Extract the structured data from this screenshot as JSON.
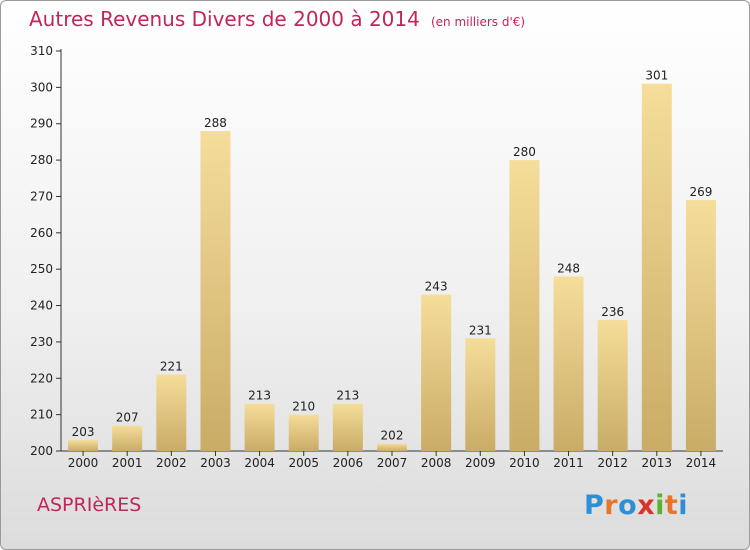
{
  "chart_data": {
    "type": "bar",
    "title": "Autres Revenus Divers de 2000 à 2014",
    "subtitle": "(en milliers d'€)",
    "categories": [
      "2000",
      "2001",
      "2002",
      "2003",
      "2004",
      "2005",
      "2006",
      "2007",
      "2008",
      "2009",
      "2010",
      "2011",
      "2012",
      "2013",
      "2014"
    ],
    "values": [
      203,
      207,
      221,
      288,
      213,
      210,
      213,
      202,
      243,
      231,
      280,
      248,
      236,
      301,
      269
    ],
    "ylim": [
      200,
      310
    ],
    "yticks": [
      200,
      210,
      220,
      230,
      240,
      250,
      260,
      270,
      280,
      290,
      300,
      310
    ],
    "xlabel": "",
    "ylabel": "",
    "grid": false,
    "bar_color": "#e9cf86",
    "title_color": "#c2255c"
  },
  "footer": {
    "commune": "ASPRIèRES"
  },
  "brand": {
    "letters": [
      {
        "char": "P",
        "color": "#2f8fd5"
      },
      {
        "char": "r",
        "color": "#e6762b"
      },
      {
        "char": "o",
        "color": "#2f8fd5"
      },
      {
        "char": "x",
        "color": "#d9342b"
      },
      {
        "char": "i",
        "color": "#59b332"
      },
      {
        "char": "t",
        "color": "#e6762b"
      },
      {
        "char": "i",
        "color": "#2f8fd5"
      }
    ]
  }
}
